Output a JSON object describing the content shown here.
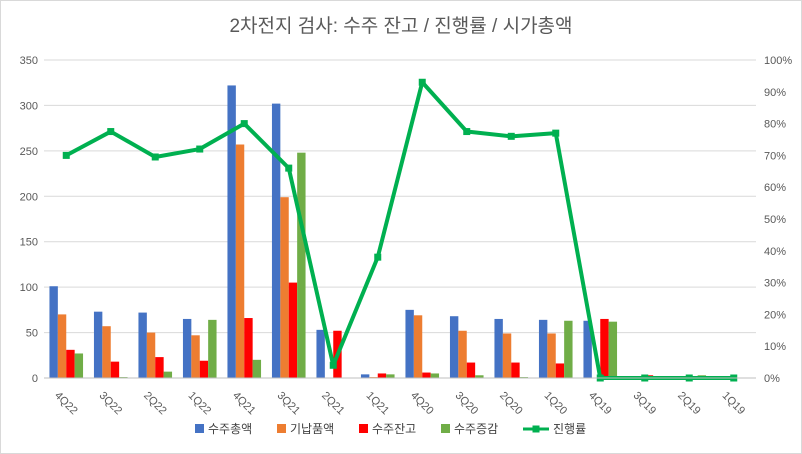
{
  "chart_data": {
    "type": "bar",
    "title": "2차전지 검사: 수주 잔고 / 진행률 / 시가총액",
    "categories": [
      "4Q22",
      "3Q22",
      "2Q22",
      "1Q22",
      "4Q21",
      "3Q21",
      "2Q21",
      "1Q21",
      "4Q20",
      "3Q20",
      "2Q20",
      "1Q20",
      "4Q19",
      "3Q19",
      "2Q19",
      "1Q19"
    ],
    "ylim": [
      0,
      350
    ],
    "y2lim": [
      0,
      1
    ],
    "yticks": [
      "0",
      "50",
      "100",
      "150",
      "200",
      "250",
      "300",
      "350"
    ],
    "y2ticks": [
      "0%",
      "10%",
      "20%",
      "30%",
      "40%",
      "50%",
      "60%",
      "70%",
      "80%",
      "90%",
      "100%"
    ],
    "grid": true,
    "legend_position": "bottom",
    "series": [
      {
        "name": "수주총액",
        "type": "bar",
        "axis": "left",
        "color": "#4472c4",
        "values": [
          101,
          73,
          72,
          65,
          322,
          302,
          53,
          4,
          75,
          68,
          65,
          64,
          63,
          0,
          0,
          0
        ]
      },
      {
        "name": "기납품액",
        "type": "bar",
        "axis": "left",
        "color": "#ed7d31",
        "values": [
          70,
          57,
          50,
          47,
          257,
          199,
          0,
          1,
          69,
          52,
          49,
          49,
          0,
          0,
          0,
          0
        ]
      },
      {
        "name": "수주잔고",
        "type": "bar",
        "axis": "left",
        "color": "#ff0000",
        "values": [
          31,
          18,
          23,
          19,
          66,
          105,
          52,
          5,
          6,
          17,
          17,
          16,
          65,
          3,
          0,
          0
        ]
      },
      {
        "name": "수주증감",
        "type": "bar",
        "axis": "left",
        "color": "#70ad47",
        "values": [
          27,
          1,
          7,
          64,
          20,
          248,
          0,
          4,
          5,
          3,
          1,
          63,
          62,
          0,
          3,
          0
        ]
      },
      {
        "name": "진행률",
        "type": "line",
        "axis": "right",
        "color": "#00b050",
        "values": [
          0.7,
          0.775,
          0.695,
          0.72,
          0.8,
          0.66,
          0.04,
          0.38,
          0.93,
          0.775,
          0.76,
          0.77,
          0.0,
          0.0,
          0.0,
          0.0
        ]
      }
    ]
  }
}
